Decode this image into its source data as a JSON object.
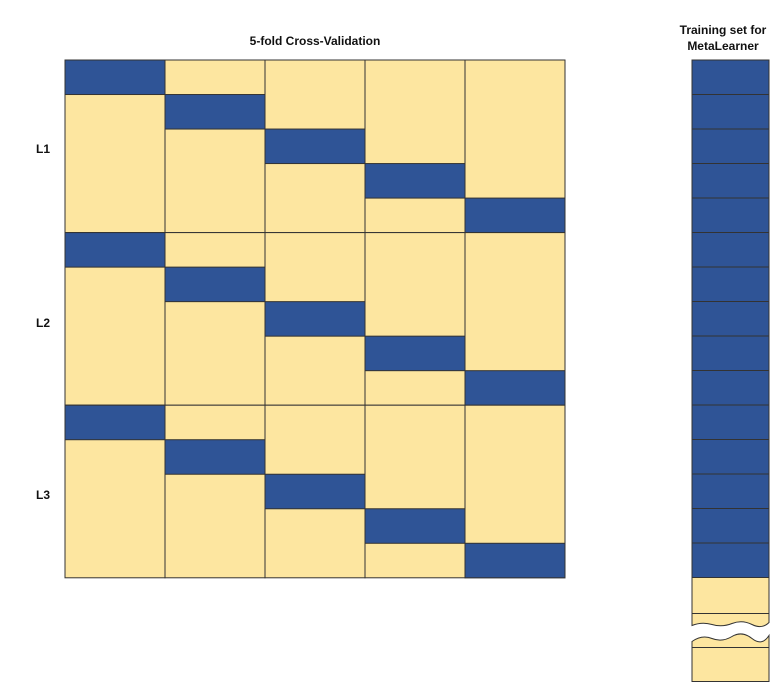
{
  "title": "5-fold Cross-Validation",
  "meta_title_line1": "Training set for",
  "meta_title_line2": "MetaLearner",
  "learners": [
    "L1",
    "L2",
    "L3"
  ],
  "folds": 5,
  "colors": {
    "train": "#fde6a0",
    "holdout": "#2f5496",
    "border": "#333333"
  },
  "meta_column": {
    "prediction_blocks": 15,
    "remaining_blocks_shown": 3,
    "has_break": true
  }
}
